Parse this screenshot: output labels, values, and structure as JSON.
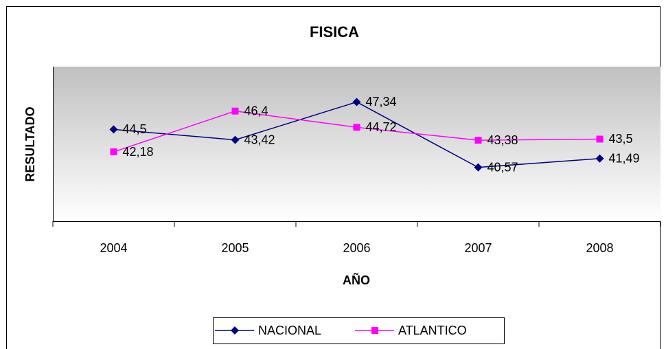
{
  "chart_data": {
    "type": "line",
    "title": "FISICA",
    "x_label": "AÑO",
    "y_label": "RESULTADO",
    "categories": [
      "2004",
      "2005",
      "2006",
      "2007",
      "2008"
    ],
    "series": [
      {
        "name": "NACIONAL",
        "color": "#000080",
        "marker": "diamond",
        "values": [
          44.5,
          43.42,
          47.34,
          40.57,
          41.49
        ],
        "value_labels": [
          "44,5",
          "43,42",
          "47,34",
          "40,57",
          "41,49"
        ]
      },
      {
        "name": "ATLANTICO",
        "color": "#ff00ff",
        "marker": "square",
        "values": [
          42.18,
          46.4,
          44.72,
          43.38,
          43.5
        ],
        "value_labels": [
          "42,18",
          "46,4",
          "44,72",
          "43,38",
          "43,5"
        ]
      }
    ],
    "ylim": [
      35,
      51
    ],
    "legend": "bottom"
  }
}
